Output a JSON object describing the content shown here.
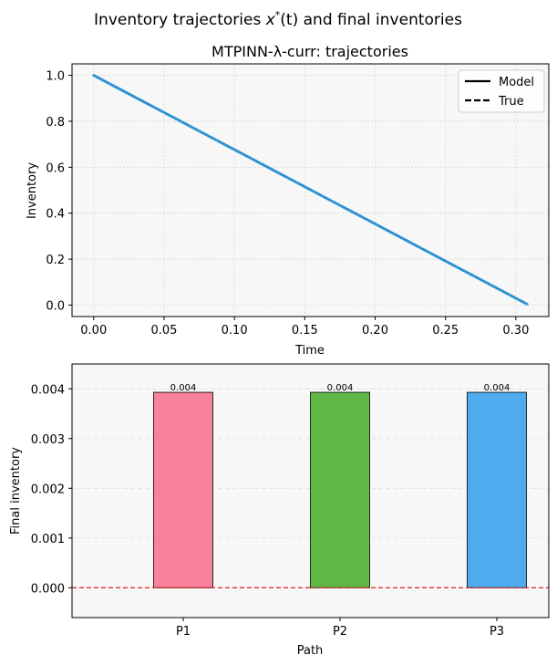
{
  "figure": {
    "suptitle_pre": "Inventory trajectories ",
    "suptitle_math_x": "x",
    "suptitle_math_sup": "*",
    "suptitle_math_arg": "(t)",
    "suptitle_post": " and final inventories"
  },
  "chart_data": [
    {
      "type": "line",
      "title": "MTPINN-λ-curr: trajectories",
      "xlabel": "Time",
      "ylabel": "Inventory",
      "xlim": [
        -0.0154,
        0.3234
      ],
      "ylim": [
        -0.05,
        1.05
      ],
      "xticks": [
        "0.00",
        "0.05",
        "0.10",
        "0.15",
        "0.20",
        "0.25",
        "0.30"
      ],
      "yticks": [
        "0.0",
        "0.2",
        "0.4",
        "0.6",
        "0.8",
        "1.0"
      ],
      "grid": true,
      "legend_position": "top-right",
      "legend": [
        {
          "label": "Model",
          "style": "solid"
        },
        {
          "label": "True",
          "style": "dashed"
        }
      ],
      "series": [
        {
          "style": "solid",
          "color": "#3fa0dc",
          "x": [
            0.0,
            0.308
          ],
          "y": [
            1.0,
            0.004
          ]
        },
        {
          "style": "dashed",
          "color": "#3fa0dc",
          "x": [
            0.0,
            0.308
          ],
          "y": [
            1.0,
            0.004
          ]
        }
      ]
    },
    {
      "type": "bar",
      "xlabel": "Path",
      "ylabel": "Final inventory",
      "categories": [
        "P1",
        "P2",
        "P3"
      ],
      "values": [
        0.00393,
        0.00393,
        0.00393
      ],
      "data_labels": [
        "0.004",
        "0.004",
        "0.004"
      ],
      "colors": [
        "#f7829a",
        "#62b846",
        "#4dabee"
      ],
      "ylim": [
        -0.0006,
        0.0045
      ],
      "yticks": [
        "0.000",
        "0.001",
        "0.002",
        "0.003",
        "0.004"
      ],
      "grid": true,
      "reference_line": {
        "y": 0.0,
        "color": "#e03030",
        "style": "dashed"
      }
    }
  ]
}
